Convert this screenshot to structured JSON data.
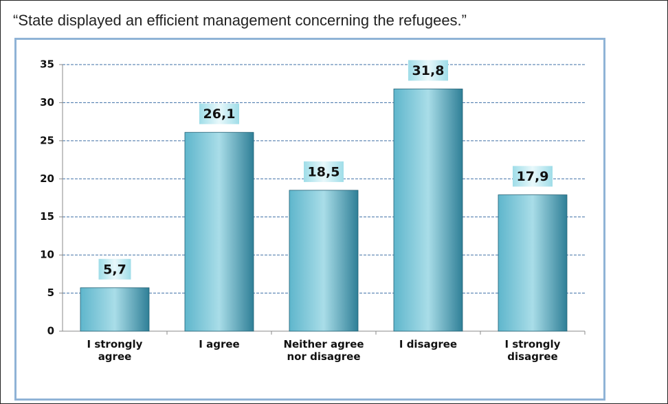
{
  "chart_data": {
    "type": "bar",
    "title": "“State displayed an efficient management concerning the refugees.”",
    "categories": [
      "I strongly\nagree",
      "I agree",
      "Neither agree\nnor disagree",
      "I disagree",
      "I strongly\ndisagree"
    ],
    "values": [
      5.7,
      26.1,
      18.5,
      31.8,
      17.9
    ],
    "value_labels": [
      "5,7",
      "26,1",
      "18,5",
      "31,8",
      "17,9"
    ],
    "color": "#3a8fa8",
    "ylim": [
      0,
      35
    ],
    "yticks": [
      0,
      5,
      10,
      15,
      20,
      25,
      30,
      35
    ],
    "grid": true
  }
}
